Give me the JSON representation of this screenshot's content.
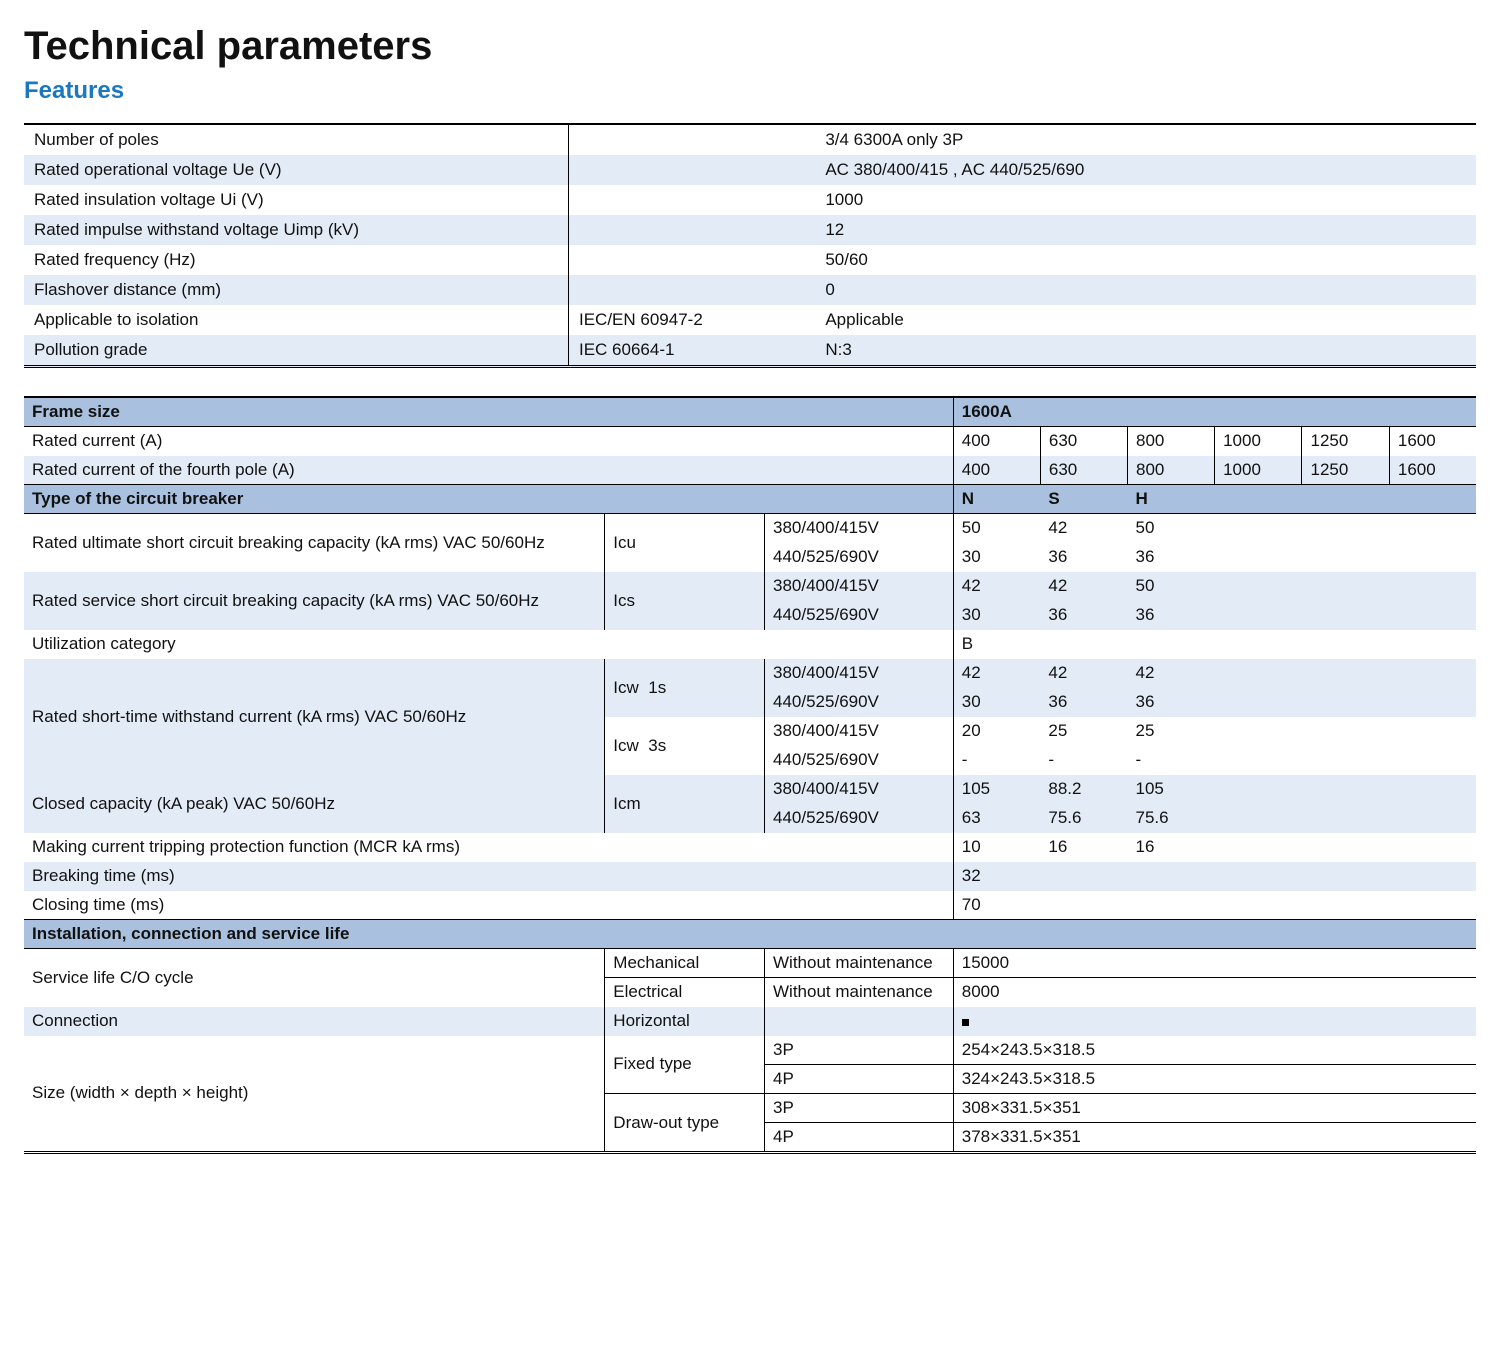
{
  "colors": {
    "stripe_light": "#e3ebf6",
    "stripe_white": "#ffffff",
    "section_header_bg": "#a9c0de",
    "text": "#111111",
    "features_accent": "#1a78c2",
    "rule": "#000000"
  },
  "title": "Technical parameters",
  "subhead": "Features",
  "features_rows": [
    {
      "label": "Number of poles",
      "std": "",
      "val": "3/4 6300A only 3P"
    },
    {
      "label": "Rated operational voltage Ue (V)",
      "std": "",
      "val": "AC 380/400/415 , AC 440/525/690"
    },
    {
      "label": "Rated insulation voltage Ui (V)",
      "std": "",
      "val": "1000"
    },
    {
      "label": "Rated impulse withstand voltage Uimp (kV)",
      "std": "",
      "val": "12"
    },
    {
      "label": "Rated frequency (Hz)",
      "std": "",
      "val": "50/60"
    },
    {
      "label": "Flashover distance (mm)",
      "std": "",
      "val": "0"
    },
    {
      "label": "Applicable to isolation",
      "std": "IEC/EN 60947-2",
      "val": "Applicable"
    },
    {
      "label": "Pollution grade",
      "std": "IEC 60664-1",
      "val": "N:3"
    }
  ],
  "spec": {
    "frame_size_label": "Frame size",
    "frame_size_value": "1600A",
    "rated_current_label": "Rated current (A)",
    "rated_current_values": [
      "400",
      "630",
      "800",
      "1000",
      "1250",
      "1600"
    ],
    "rated_current_4p_label": "Rated current of the fourth pole (A)",
    "rated_current_4p_values": [
      "400",
      "630",
      "800",
      "1000",
      "1250",
      "1600"
    ],
    "type_cb_label": "Type of the circuit breaker",
    "type_cb_cols": [
      "N",
      "S",
      "H"
    ],
    "voltage_a": "380/400/415V",
    "voltage_b": "440/525/690V",
    "icu_label": "Rated ultimate short circuit breaking capacity (kA rms) VAC 50/60Hz",
    "icu_sym": "Icu",
    "icu_a": [
      "50",
      "42",
      "50"
    ],
    "icu_b": [
      "30",
      "36",
      "36"
    ],
    "ics_label": "Rated service short circuit breaking capacity (kA rms) VAC 50/60Hz",
    "ics_sym": "Ics",
    "ics_a": [
      "42",
      "42",
      "50"
    ],
    "ics_b": [
      "30",
      "36",
      "36"
    ],
    "util_label": "Utilization category",
    "util_val": "B",
    "icw_label": "Rated short-time withstand current (kA rms) VAC 50/60Hz",
    "icw1_sym": "Icw  1s",
    "icw1_a": [
      "42",
      "42",
      "42"
    ],
    "icw1_b": [
      "30",
      "36",
      "36"
    ],
    "icw3_sym": "Icw  3s",
    "icw3_a": [
      "20",
      "25",
      "25"
    ],
    "icw3_b": [
      "-",
      "-",
      "-"
    ],
    "icm_label": "Closed capacity (kA peak) VAC 50/60Hz",
    "icm_sym": "Icm",
    "icm_a": [
      "105",
      "88.2",
      "105"
    ],
    "icm_b": [
      "63",
      "75.6",
      "75.6"
    ],
    "mcr_label": "Making current tripping protection function (MCR kA rms)",
    "mcr_vals": [
      "10",
      "16",
      "16"
    ],
    "breaking_label": "Breaking time (ms)",
    "breaking_val": "32",
    "closing_label": "Closing time (ms)",
    "closing_val": "70",
    "install_label": "Installation, connection and service life",
    "service_life_label": "Service life C/O cycle",
    "mechanical": "Mechanical",
    "electrical": "Electrical",
    "without_maint": "Without maintenance",
    "service_life_mech": "15000",
    "service_life_elec": "8000",
    "connection_label": "Connection",
    "connection_val": "Horizontal",
    "size_label": "Size (width × depth × height)",
    "fixed_type": "Fixed type",
    "drawout_type": "Draw-out type",
    "p3": "3P",
    "p4": "4P",
    "size_fixed_3p": "254×243.5×318.5",
    "size_fixed_4p": "324×243.5×318.5",
    "size_draw_3p": "308×331.5×351",
    "size_draw_4p": "378×331.5×351"
  }
}
